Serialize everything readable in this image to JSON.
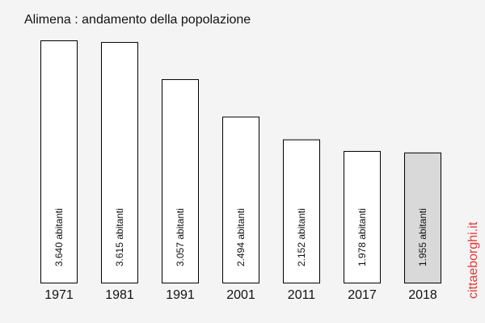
{
  "chart_data": {
    "type": "bar",
    "title": "Alimena : andamento della popolazione",
    "categories": [
      "1971",
      "1981",
      "1991",
      "2001",
      "2011",
      "2017",
      "2018"
    ],
    "values": [
      3640,
      3615,
      3057,
      2494,
      2152,
      1978,
      1955
    ],
    "value_labels": [
      "3.640 abitanti",
      "3.615 abitanti",
      "3.057 abitanti",
      "2.494 abitanti",
      "2.152 abitanti",
      "1.978 abitanti",
      "1.955 abitanti"
    ],
    "highlight_category": "2018",
    "ylim": [
      0,
      3640
    ],
    "xlabel": "",
    "ylabel": "",
    "grid": false,
    "legend": "none"
  },
  "watermark": "cittaeborghi.it",
  "colors": {
    "background": "#f4f4f4",
    "bar_fill": "#ffffff",
    "bar_highlight": "#d9d9d9",
    "bar_stroke": "#000000",
    "text": "#111111",
    "watermark": "#e03a3a"
  }
}
